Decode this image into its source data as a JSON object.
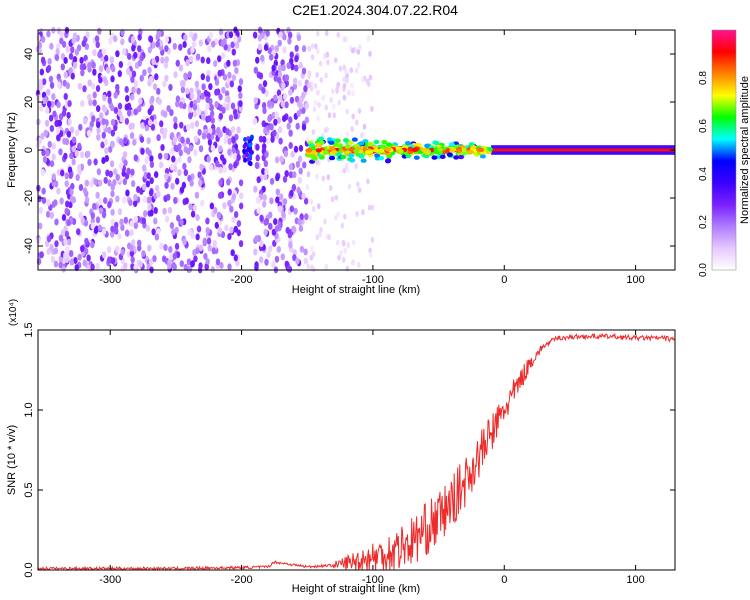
{
  "page_title": "C2E1.2024.304.07.22.R04",
  "chart_data": [
    {
      "type": "heatmap",
      "title": "",
      "xlabel": "Height of straight line (km)",
      "ylabel": "Frequency (Hz)",
      "xlim": [
        -355,
        130
      ],
      "ylim": [
        -50,
        50
      ],
      "xticks": [
        -300,
        -200,
        -100,
        0,
        100
      ],
      "yticks": [
        -40,
        -20,
        0,
        20,
        40
      ],
      "colorbar": {
        "label": "Normalized spectral amplitude",
        "range": [
          0,
          1
        ],
        "ticks": [
          "0.0",
          "0.2",
          "0.4",
          "0.6",
          "0.8"
        ],
        "colormap": [
          "#ffffff",
          "#e7c8ff",
          "#b07cff",
          "#7a20ff",
          "#3a00ff",
          "#0000ff",
          "#00ffff",
          "#00ff00",
          "#ffff00",
          "#ff8000",
          "#ff0000",
          "#ff1493"
        ]
      },
      "regions": [
        {
          "name": "noise",
          "x": [
            -355,
            -150
          ],
          "freq": [
            -50,
            50
          ],
          "amplitude": 0.15
        },
        {
          "name": "sparse",
          "x": [
            -150,
            -100
          ],
          "freq": [
            -50,
            50
          ],
          "amplitude": 0.05
        },
        {
          "name": "emerging signal",
          "x": [
            -150,
            -10
          ],
          "freq": [
            -6,
            6
          ],
          "amplitude": 0.4
        },
        {
          "name": "carrier line",
          "x": [
            -10,
            130
          ],
          "freq": [
            -1,
            1
          ],
          "amplitude": 0.9
        }
      ]
    },
    {
      "type": "line",
      "title": "",
      "xlabel": "Height of straight line (km)",
      "ylabel": "SNR (10 * v/v)",
      "y_multiplier": "(x10⁴)",
      "xlim": [
        -355,
        130
      ],
      "ylim": [
        0,
        1.5
      ],
      "xticks": [
        -300,
        -200,
        -100,
        0,
        100
      ],
      "yticks": [
        "0.0",
        "0.5",
        "1.0",
        "1.5"
      ],
      "color": "#ee2a2a",
      "x": [
        -355,
        -300,
        -250,
        -200,
        -180,
        -175,
        -150,
        -130,
        -110,
        -90,
        -70,
        -60,
        -50,
        -40,
        -30,
        -20,
        -10,
        0,
        10,
        20,
        30,
        40,
        60,
        80,
        100,
        120,
        130
      ],
      "values": [
        0.01,
        0.01,
        0.01,
        0.015,
        0.02,
        0.05,
        0.02,
        0.03,
        0.06,
        0.1,
        0.18,
        0.25,
        0.32,
        0.42,
        0.55,
        0.7,
        0.85,
        1.0,
        1.15,
        1.3,
        1.4,
        1.45,
        1.46,
        1.46,
        1.45,
        1.45,
        1.44
      ]
    }
  ]
}
